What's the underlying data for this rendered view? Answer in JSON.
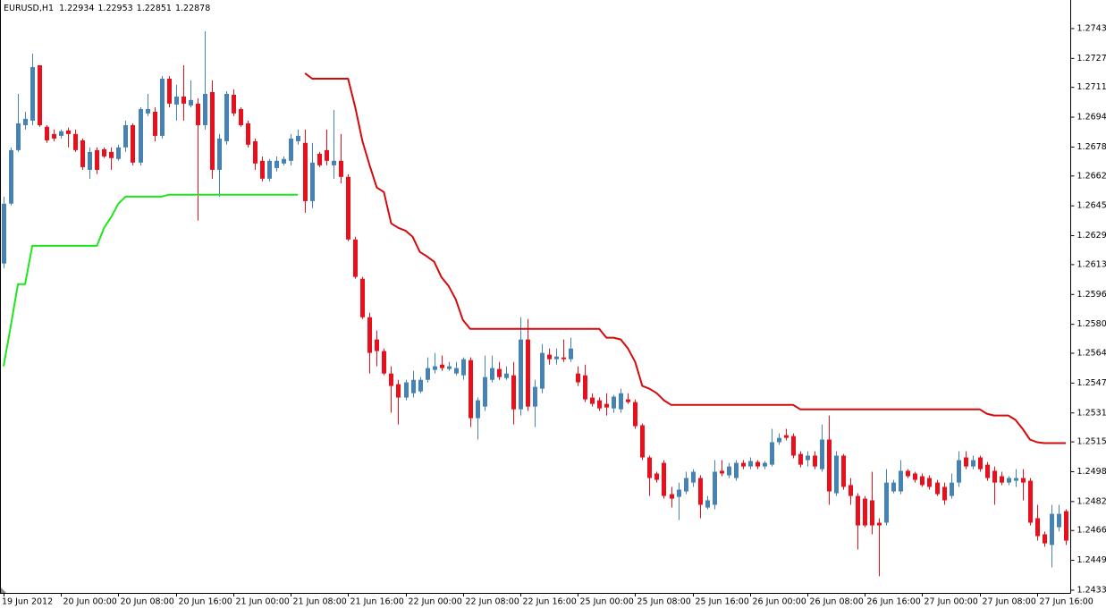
{
  "chart_data": {
    "type": "candlestick",
    "title": "EURUSD,H1",
    "header_values": [
      1.22934,
      1.22953,
      1.22851,
      1.22878
    ],
    "up_color": "#4682b4",
    "down_color": "#e8101c",
    "ylim": [
      1.24315,
      1.27593
    ],
    "yticks": [
      1.27435,
      {
        "value": 1.2727,
        "label": "1.27270"
      },
      {
        "value": 1.2711,
        "label": "1.27110"
      },
      1.26945,
      {
        "value": 1.2678,
        "label": "1.26780"
      },
      {
        "value": 1.2662,
        "label": "1.26620"
      },
      1.26455,
      {
        "value": 1.2629,
        "label": "1.26290"
      },
      {
        "value": 1.2613,
        "label": "1.26130"
      },
      1.25965,
      {
        "value": 1.258,
        "label": "1.25800"
      },
      {
        "value": 1.2564,
        "label": "1.25640"
      },
      1.25475,
      {
        "value": 1.2531,
        "label": "1.25310"
      },
      {
        "value": 1.2515,
        "label": "1.25150"
      },
      1.24985,
      {
        "value": 1.2482,
        "label": "1.24820"
      },
      {
        "value": 1.2466,
        "label": "1.24660"
      },
      1.24495,
      {
        "value": 1.2433,
        "label": "1.24330"
      }
    ],
    "categories": [
      "19 Jun 2012",
      null,
      null,
      null,
      null,
      null,
      null,
      null,
      "20 Jun 00:00",
      null,
      null,
      null,
      null,
      null,
      null,
      null,
      "20 Jun 08:00",
      null,
      null,
      null,
      null,
      null,
      null,
      null,
      "20 Jun 16:00",
      null,
      null,
      null,
      null,
      null,
      null,
      null,
      "21 Jun 00:00",
      null,
      null,
      null,
      null,
      null,
      null,
      null,
      "21 Jun 08:00",
      null,
      null,
      null,
      null,
      null,
      null,
      null,
      "21 Jun 16:00",
      null,
      null,
      null,
      null,
      null,
      null,
      null,
      "22 Jun 00:00",
      null,
      null,
      null,
      null,
      null,
      null,
      null,
      "22 Jun 08:00",
      null,
      null,
      null,
      null,
      null,
      null,
      null,
      "22 Jun 16:00",
      null,
      null,
      null,
      null,
      null,
      null,
      null,
      "25 Jun 00:00",
      null,
      null,
      null,
      null,
      null,
      null,
      null,
      "25 Jun 08:00",
      null,
      null,
      null,
      null,
      null,
      null,
      null,
      "25 Jun 16:00",
      null,
      null,
      null,
      null,
      null,
      null,
      null,
      "26 Jun 00:00",
      null,
      null,
      null,
      null,
      null,
      null,
      null,
      "26 Jun 08:00",
      null,
      null,
      null,
      null,
      null,
      null,
      null,
      "26 Jun 16:00",
      null,
      null,
      null,
      null,
      null,
      null,
      null,
      "27 Jun 00:00",
      null,
      null,
      null,
      null,
      null,
      null,
      null,
      "27 Jun 08:00",
      null,
      null,
      null,
      null,
      null,
      null,
      null,
      "27 Jun 16:00",
      null,
      null,
      null,
      null
    ],
    "open": [
      1.26136,
      1.26467,
      1.26763,
      1.26901,
      1.26926,
      1.27232,
      1.26892,
      1.26852,
      1.26842,
      1.26872,
      1.26852,
      1.26817,
      1.26654,
      1.26763,
      1.26768,
      1.26753,
      1.26714,
      1.26778,
      1.26901,
      1.26694,
      1.26966,
      1.26975,
      1.26842,
      1.27158,
      1.27015,
      1.27059,
      1.2701,
      1.2702,
      1.26901,
      1.27084,
      1.26654,
      1.26812,
      1.27069,
      1.2699,
      1.26911,
      1.26812,
      1.26704,
      1.26605,
      1.26664,
      1.26689,
      1.26704,
      1.26812,
      1.26803,
      1.26481,
      1.26743,
      1.26763,
      1.26679,
      1.26704,
      1.26615,
      1.26269,
      1.26052,
      1.25839,
      1.25716,
      1.25652,
      1.25528,
      1.25469,
      1.25395,
      1.25419,
      1.25429,
      1.25493,
      1.25548,
      1.25577,
      1.25553,
      1.25528,
      1.25518,
      1.25602,
      1.25281,
      1.25345,
      1.25493,
      1.25553,
      1.25503,
      1.25518,
      1.2533,
      1.25716,
      1.25345,
      1.25444,
      1.25632,
      1.25607,
      1.25617,
      1.25607,
      1.25528,
      1.25518,
      1.25395,
      1.2538,
      1.2536,
      1.25335,
      1.2533,
      1.25385,
      1.2537,
      1.25242,
      1.25064,
      1.24975,
      1.25034,
      1.24861,
      1.24846,
      1.24876,
      1.24925,
      1.2495,
      1.24787,
      1.24802,
      1.2499,
      1.24965,
      1.2495,
      1.25034,
      1.25014,
      1.25039,
      1.25014,
      1.25024,
      1.25148,
      1.25187,
      1.25182,
      1.25083,
      1.25049,
      1.25074,
      1.24999,
      1.25163,
      1.24866,
      1.25074,
      1.24911,
      1.24851,
      1.24836,
      1.24827,
      1.24703,
      1.24703,
      1.24876,
      1.24876,
      1.2499,
      1.24975,
      1.2496,
      1.2495,
      1.24925,
      1.24901,
      1.24851,
      1.24925,
      1.25064,
      1.25014,
      1.25064,
      1.25024,
      1.2499,
      1.2496,
      1.24925,
      1.24935,
      1.2495,
      1.24935,
      1.24728,
      1.24639,
      1.2458,
      1.24678,
      1.24767
    ],
    "high": [
      1.26506,
      1.26778,
      1.27074,
      1.26975,
      1.27297,
      1.27232,
      1.26901,
      1.26877,
      1.26877,
      1.26887,
      1.26877,
      1.26827,
      1.26778,
      1.26778,
      1.26778,
      1.26778,
      1.26793,
      1.26926,
      1.26911,
      1.27,
      1.27074,
      1.27,
      1.27173,
      1.27173,
      1.27124,
      1.27232,
      1.27148,
      1.2705,
      1.2742,
      1.27148,
      1.26852,
      1.27089,
      1.27099,
      1.27,
      1.26926,
      1.26827,
      1.26728,
      1.26714,
      1.26728,
      1.26728,
      1.26852,
      1.26877,
      1.26877,
      1.26803,
      1.26753,
      1.26877,
      1.26985,
      1.26852,
      1.2663,
      1.26284,
      1.26062,
      1.25864,
      1.25765,
      1.25666,
      1.25568,
      1.25493,
      1.25493,
      1.25543,
      1.25508,
      1.25617,
      1.25642,
      1.25627,
      1.25592,
      1.25592,
      1.25617,
      1.25617,
      1.25395,
      1.25627,
      1.25627,
      1.25592,
      1.25568,
      1.25592,
      1.25839,
      1.25829,
      1.25493,
      1.25691,
      1.25666,
      1.25666,
      1.25716,
      1.25726,
      1.25568,
      1.25577,
      1.25419,
      1.25395,
      1.25419,
      1.2541,
      1.25444,
      1.25419,
      1.25385,
      1.25251,
      1.25074,
      1.24985,
      1.25049,
      1.24901,
      1.24925,
      1.24985,
      1.24999,
      1.24965,
      1.24851,
      1.25049,
      1.25049,
      1.25034,
      1.25049,
      1.25049,
      1.25064,
      1.25049,
      1.25044,
      1.25222,
      1.25197,
      1.25222,
      1.25197,
      1.25098,
      1.25098,
      1.25098,
      1.25246,
      1.25296,
      1.25098,
      1.25083,
      1.2495,
      1.24866,
      1.24851,
      1.24985,
      1.24728,
      1.24999,
      1.2494,
      1.25049,
      1.24999,
      1.24985,
      1.24975,
      1.24965,
      1.2494,
      1.24925,
      1.24975,
      1.25098,
      1.25098,
      1.25074,
      1.25074,
      1.25039,
      1.25014,
      1.24985,
      1.2496,
      1.24999,
      1.24999,
      1.2495,
      1.24802,
      1.24654,
      1.24802,
      1.24802,
      1.24777
    ],
    "low": [
      1.26111,
      1.26457,
      1.26753,
      1.26877,
      1.26901,
      1.26892,
      1.26803,
      1.26812,
      1.26827,
      1.26778,
      1.26753,
      1.26654,
      1.26605,
      1.2663,
      1.26719,
      1.26654,
      1.26704,
      1.26753,
      1.26679,
      1.26679,
      1.26951,
      1.26812,
      1.26827,
      1.27,
      1.26926,
      1.26926,
      1.27,
      1.26373,
      1.26877,
      1.26605,
      1.26506,
      1.26793,
      1.26951,
      1.26892,
      1.26778,
      1.26654,
      1.2659,
      1.2659,
      1.26645,
      1.26679,
      1.26679,
      1.26793,
      1.26417,
      1.26442,
      1.26669,
      1.26679,
      1.26605,
      1.2658,
      1.26259,
      1.26052,
      1.25829,
      1.25528,
      1.25568,
      1.25518,
      1.25311,
      1.25246,
      1.2538,
      1.25395,
      1.25419,
      1.25479,
      1.25528,
      1.25543,
      1.25543,
      1.25518,
      1.25493,
      1.25232,
      1.25163,
      1.25321,
      1.25479,
      1.25493,
      1.25493,
      1.25246,
      1.25296,
      1.25321,
      1.25232,
      1.25419,
      1.25577,
      1.25577,
      1.25592,
      1.25592,
      1.25459,
      1.2537,
      1.25345,
      1.25321,
      1.25296,
      1.25311,
      1.25311,
      1.2536,
      1.25222,
      1.25049,
      1.24851,
      1.24925,
      1.24836,
      1.24787,
      1.24718,
      1.24861,
      1.24901,
      1.24728,
      1.24777,
      1.24777,
      1.2496,
      1.2495,
      1.24935,
      1.24999,
      1.24999,
      1.24999,
      1.24999,
      1.25014,
      1.25133,
      1.25158,
      1.25059,
      1.25009,
      1.25014,
      1.24999,
      1.24985,
      1.24802,
      1.24851,
      1.24886,
      1.24802,
      1.24555,
      1.24678,
      1.24639,
      1.24407,
      1.24688,
      1.24866,
      1.24861,
      1.2495,
      1.24925,
      1.24901,
      1.24886,
      1.24851,
      1.24802,
      1.24836,
      1.24901,
      1.24999,
      1.24999,
      1.24985,
      1.24935,
      1.24802,
      1.24911,
      1.24911,
      1.24901,
      1.24827,
      1.24688,
      1.24604,
      1.2457,
      1.24456,
      1.24654,
      1.2458
    ],
    "close": [
      1.26467,
      1.26763,
      1.26911,
      1.26936,
      1.27222,
      1.26901,
      1.26817,
      1.26827,
      1.26867,
      1.26852,
      1.26763,
      1.26669,
      1.26753,
      1.26654,
      1.26728,
      1.26719,
      1.26778,
      1.26901,
      1.26694,
      1.2699,
      1.2699,
      1.26842,
      1.27158,
      1.2702,
      1.27059,
      1.2702,
      1.2704,
      1.26901,
      1.27074,
      1.26654,
      1.26827,
      1.27074,
      1.26966,
      1.26901,
      1.26793,
      1.26689,
      1.26605,
      1.26704,
      1.26704,
      1.26714,
      1.26827,
      1.26842,
      1.26481,
      1.26694,
      1.26679,
      1.26704,
      1.26704,
      1.26615,
      1.26269,
      1.26062,
      1.25839,
      1.25642,
      1.25652,
      1.25528,
      1.25459,
      1.25395,
      1.25479,
      1.25493,
      1.25493,
      1.25558,
      1.25568,
      1.25558,
      1.25568,
      1.25558,
      1.25607,
      1.25281,
      1.2538,
      1.25508,
      1.25558,
      1.25508,
      1.25528,
      1.2533,
      1.25716,
      1.25345,
      1.25454,
      1.25642,
      1.25607,
      1.25622,
      1.25607,
      1.25666,
      1.25479,
      1.25385,
      1.2536,
      1.25335,
      1.2534,
      1.254,
      1.25419,
      1.2537,
      1.25237,
      1.25064,
      1.2495,
      1.2494,
      1.24851,
      1.24836,
      1.24886,
      1.2495,
      1.24985,
      1.24802,
      1.24827,
      1.24985,
      1.24975,
      1.25014,
      1.25034,
      1.25014,
      1.25044,
      1.25014,
      1.25034,
      1.25148,
      1.25172,
      1.25172,
      1.25074,
      1.25024,
      1.25074,
      1.25014,
      1.25163,
      1.24876,
      1.25074,
      1.24901,
      1.24851,
      1.24688,
      1.24688,
      1.24688,
      1.24688,
      1.24925,
      1.24925,
      1.2499,
      1.2496,
      1.2494,
      1.24911,
      1.24901,
      1.24861,
      1.24827,
      1.24925,
      1.25049,
      1.25014,
      1.25049,
      1.24999,
      1.2495,
      1.24925,
      1.24925,
      1.2495,
      1.2495,
      1.24925,
      1.24703,
      1.24629,
      1.24589,
      1.24752,
      1.24752,
      1.24604
    ],
    "lines": [
      {
        "color": "#1ee61e",
        "values": [
          1.25568,
          1.2579,
          1.26022,
          1.26022,
          1.26234,
          1.26234,
          1.26234,
          1.26234,
          1.26234,
          1.26234,
          1.26234,
          1.26234,
          1.26234,
          1.26234,
          1.26333,
          1.26393,
          1.26467,
          1.26506,
          1.26506,
          1.26506,
          1.26506,
          1.26506,
          1.26506,
          1.26516,
          1.26516,
          1.26516,
          1.26516,
          1.26516,
          1.26516,
          1.26516,
          1.26516,
          1.26516,
          1.26516,
          1.26516,
          1.26516,
          1.26516,
          1.26516,
          1.26516,
          1.26516,
          1.26516,
          1.26516,
          1.26516,
          null,
          null,
          null,
          null,
          null,
          null,
          null,
          null,
          null,
          null,
          null,
          null,
          null,
          null,
          null,
          null,
          null,
          null,
          null,
          null,
          null,
          null,
          null,
          null,
          null,
          null,
          null,
          null,
          null,
          null,
          null,
          null,
          null,
          null,
          null,
          null,
          null,
          null,
          null,
          null,
          null,
          null,
          null,
          null,
          null,
          null,
          null,
          null,
          null,
          null,
          null,
          null,
          null,
          null,
          null,
          null,
          null,
          null,
          null,
          null,
          null,
          null,
          null,
          null,
          null,
          null,
          null,
          null,
          null,
          null,
          null,
          null,
          null,
          null,
          null,
          null,
          null,
          null,
          null,
          null,
          null,
          null,
          null,
          null,
          null,
          null,
          null,
          null,
          null,
          null,
          null,
          null,
          null,
          null,
          null,
          null,
          null,
          null,
          null,
          null,
          null,
          null,
          null,
          null,
          null,
          null,
          null
        ]
      },
      {
        "color": "#d40a0a",
        "values": [
          null,
          null,
          null,
          null,
          null,
          null,
          null,
          null,
          null,
          null,
          null,
          null,
          null,
          null,
          null,
          null,
          null,
          null,
          null,
          null,
          null,
          null,
          null,
          null,
          null,
          null,
          null,
          null,
          null,
          null,
          null,
          null,
          null,
          null,
          null,
          null,
          null,
          null,
          null,
          null,
          null,
          null,
          1.27188,
          1.27158,
          1.27158,
          1.27158,
          1.27158,
          1.27158,
          1.27158,
          1.27,
          1.26812,
          1.26679,
          1.26556,
          1.26531,
          1.26358,
          1.26333,
          1.26318,
          1.26284,
          1.262,
          1.26175,
          1.26146,
          1.26062,
          1.26012,
          1.25938,
          1.25824,
          1.25775,
          1.25775,
          1.25775,
          1.25775,
          1.25775,
          1.25775,
          1.25775,
          1.25775,
          1.25775,
          1.25775,
          1.25775,
          1.25775,
          1.25775,
          1.25775,
          1.25775,
          1.25775,
          1.25775,
          1.25775,
          1.25775,
          1.25726,
          1.25726,
          1.25716,
          1.25666,
          1.25592,
          1.25459,
          1.25444,
          1.25419,
          1.2538,
          1.25355,
          1.25355,
          1.25355,
          1.25355,
          1.25355,
          1.25355,
          1.25355,
          1.25355,
          1.25355,
          1.25355,
          1.25355,
          1.25355,
          1.25355,
          1.25355,
          1.25355,
          1.25355,
          1.25355,
          1.25355,
          1.2533,
          1.2533,
          1.2533,
          1.2533,
          1.2533,
          1.2533,
          1.2533,
          1.2533,
          1.2533,
          1.2533,
          1.2533,
          1.2533,
          1.2533,
          1.2533,
          1.2533,
          1.2533,
          1.2533,
          1.2533,
          1.2533,
          1.2533,
          1.2533,
          1.2533,
          1.2533,
          1.2533,
          1.2533,
          1.2533,
          1.25306,
          1.25296,
          1.25296,
          1.25296,
          1.25271,
          1.25222,
          1.25163,
          1.25148,
          1.25143,
          1.25143,
          1.25143,
          1.25143
        ]
      }
    ]
  }
}
